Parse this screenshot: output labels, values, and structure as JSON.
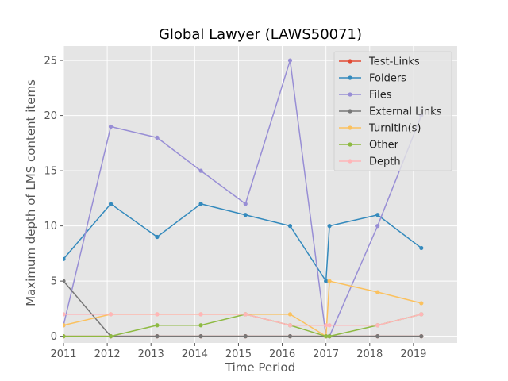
{
  "chart_data": {
    "type": "line",
    "title": "Global Lawyer (LAWS50071)",
    "xlabel": "Time Period",
    "ylabel": "Maximum depth of LMS content items",
    "xlim": [
      2011,
      2020
    ],
    "ylim": [
      -0.6,
      26.3
    ],
    "xticks": [
      "2011",
      "2012",
      "2013",
      "2014",
      "2015",
      "2016",
      "2017",
      "2018",
      "2019"
    ],
    "yticks": [
      "0",
      "5",
      "10",
      "15",
      "20",
      "25"
    ],
    "grid": true,
    "legend_position": "top-right",
    "x": [
      2011.0,
      2012.08,
      2013.14,
      2014.14,
      2015.16,
      2016.18,
      2017.0,
      2017.08,
      2018.18,
      2019.18
    ],
    "series": [
      {
        "name": "Test-Links",
        "color": "#E24A33",
        "values": [
          0,
          0,
          0,
          0,
          0,
          0,
          0,
          0,
          0,
          0
        ]
      },
      {
        "name": "Folders",
        "color": "#348ABD",
        "values": [
          7,
          12,
          9,
          12,
          11,
          10,
          5,
          10,
          11,
          8
        ]
      },
      {
        "name": "Files",
        "color": "#988ED5",
        "values": [
          1,
          19,
          18,
          15,
          12,
          25,
          0,
          0,
          10,
          20
        ]
      },
      {
        "name": "External Links",
        "color": "#777777",
        "values": [
          5,
          0,
          0,
          0,
          0,
          0,
          0,
          0,
          0,
          0
        ]
      },
      {
        "name": "TurnItIn(s)",
        "color": "#FBC15E",
        "values": [
          1,
          2,
          2,
          2,
          2,
          2,
          0,
          5,
          4,
          3
        ]
      },
      {
        "name": "Other",
        "color": "#8EBA42",
        "values": [
          0,
          0,
          1,
          1,
          2,
          1,
          0,
          0,
          1,
          2
        ]
      },
      {
        "name": "Depth",
        "color": "#FFB5B8",
        "values": [
          2,
          2,
          2,
          2,
          2,
          1,
          1,
          1,
          1,
          2
        ]
      }
    ]
  }
}
